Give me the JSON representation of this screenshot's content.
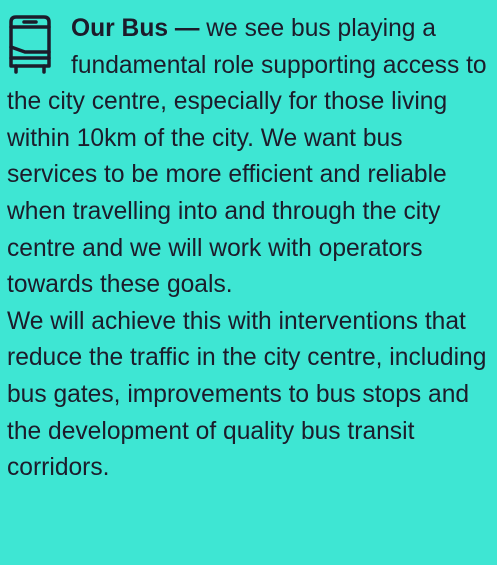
{
  "heading": "Our Bus —",
  "paragraphs": [
    "we see bus playing a fundamental role supporting access to the city centre, especially for those living within 10km of the city. We want bus services to be more efficient and reliable when travelling into and through the city centre and we will work with operators towards these goals.",
    "We will achieve this with interventions that reduce the traffic in the city centre, including bus gates, improvements to bus stops and the development of quality bus transit corridors."
  ]
}
